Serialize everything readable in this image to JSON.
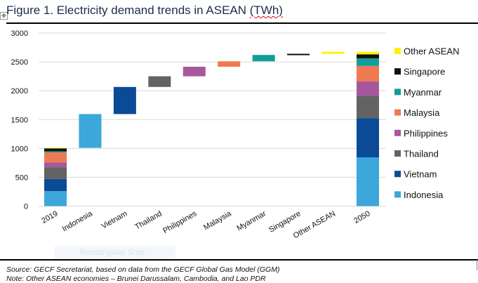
{
  "figure": {
    "title_prefix": "Figure 1. Electricity demand trends in ASEAN ",
    "title_unit": "(TWh)",
    "source": "Source: GECF Secretariat, based on data from the GECF Global Gas Model (GGM)",
    "note": "Note: Other ASEAN economies – Brunei Darussalam, Cambodia, and Lao PDR",
    "overlay_label": "Rectangular Snip",
    "move_handle_icon": "✥"
  },
  "chart_data": {
    "type": "bar",
    "subtype": "waterfall-stacked",
    "title": "Figure 1. Electricity demand trends in ASEAN (TWh)",
    "xlabel": "",
    "ylabel": "",
    "ylim": [
      0,
      3000
    ],
    "yticks": [
      0,
      500,
      1000,
      1500,
      2000,
      2500,
      3000
    ],
    "grid": true,
    "legend_position": "right",
    "categories": [
      "2019",
      "Indonesia",
      "Vietnam",
      "Thailand",
      "Philippines",
      "Malaysia",
      "Myanmar",
      "Singapore",
      "Other ASEAN",
      "2050"
    ],
    "series": [
      {
        "name": "Indonesia",
        "color": "#3ba7da",
        "y2019": 260,
        "increase": 585,
        "y2050": 845
      },
      {
        "name": "Vietnam",
        "color": "#0b4a97",
        "y2019": 210,
        "increase": 470,
        "y2050": 680
      },
      {
        "name": "Thailand",
        "color": "#636363",
        "y2019": 200,
        "increase": 185,
        "y2050": 385
      },
      {
        "name": "Philippines",
        "color": "#a6579e",
        "y2019": 85,
        "increase": 165,
        "y2050": 250
      },
      {
        "name": "Malaysia",
        "color": "#ee7a52",
        "y2019": 175,
        "increase": 95,
        "y2050": 270
      },
      {
        "name": "Myanmar",
        "color": "#129d98",
        "y2019": 20,
        "increase": 110,
        "y2050": 130
      },
      {
        "name": "Singapore",
        "color": "#111111",
        "y2019": 50,
        "increase": 20,
        "y2050": 70
      },
      {
        "name": "Other ASEAN",
        "color": "#fff200",
        "y2019": 10,
        "increase": 35,
        "y2050": 45
      }
    ],
    "legend_order": [
      "Other ASEAN",
      "Singapore",
      "Myanmar",
      "Malaysia",
      "Philippines",
      "Thailand",
      "Vietnam",
      "Indonesia"
    ],
    "totals": {
      "2019": 1010,
      "2050": 2675
    }
  }
}
